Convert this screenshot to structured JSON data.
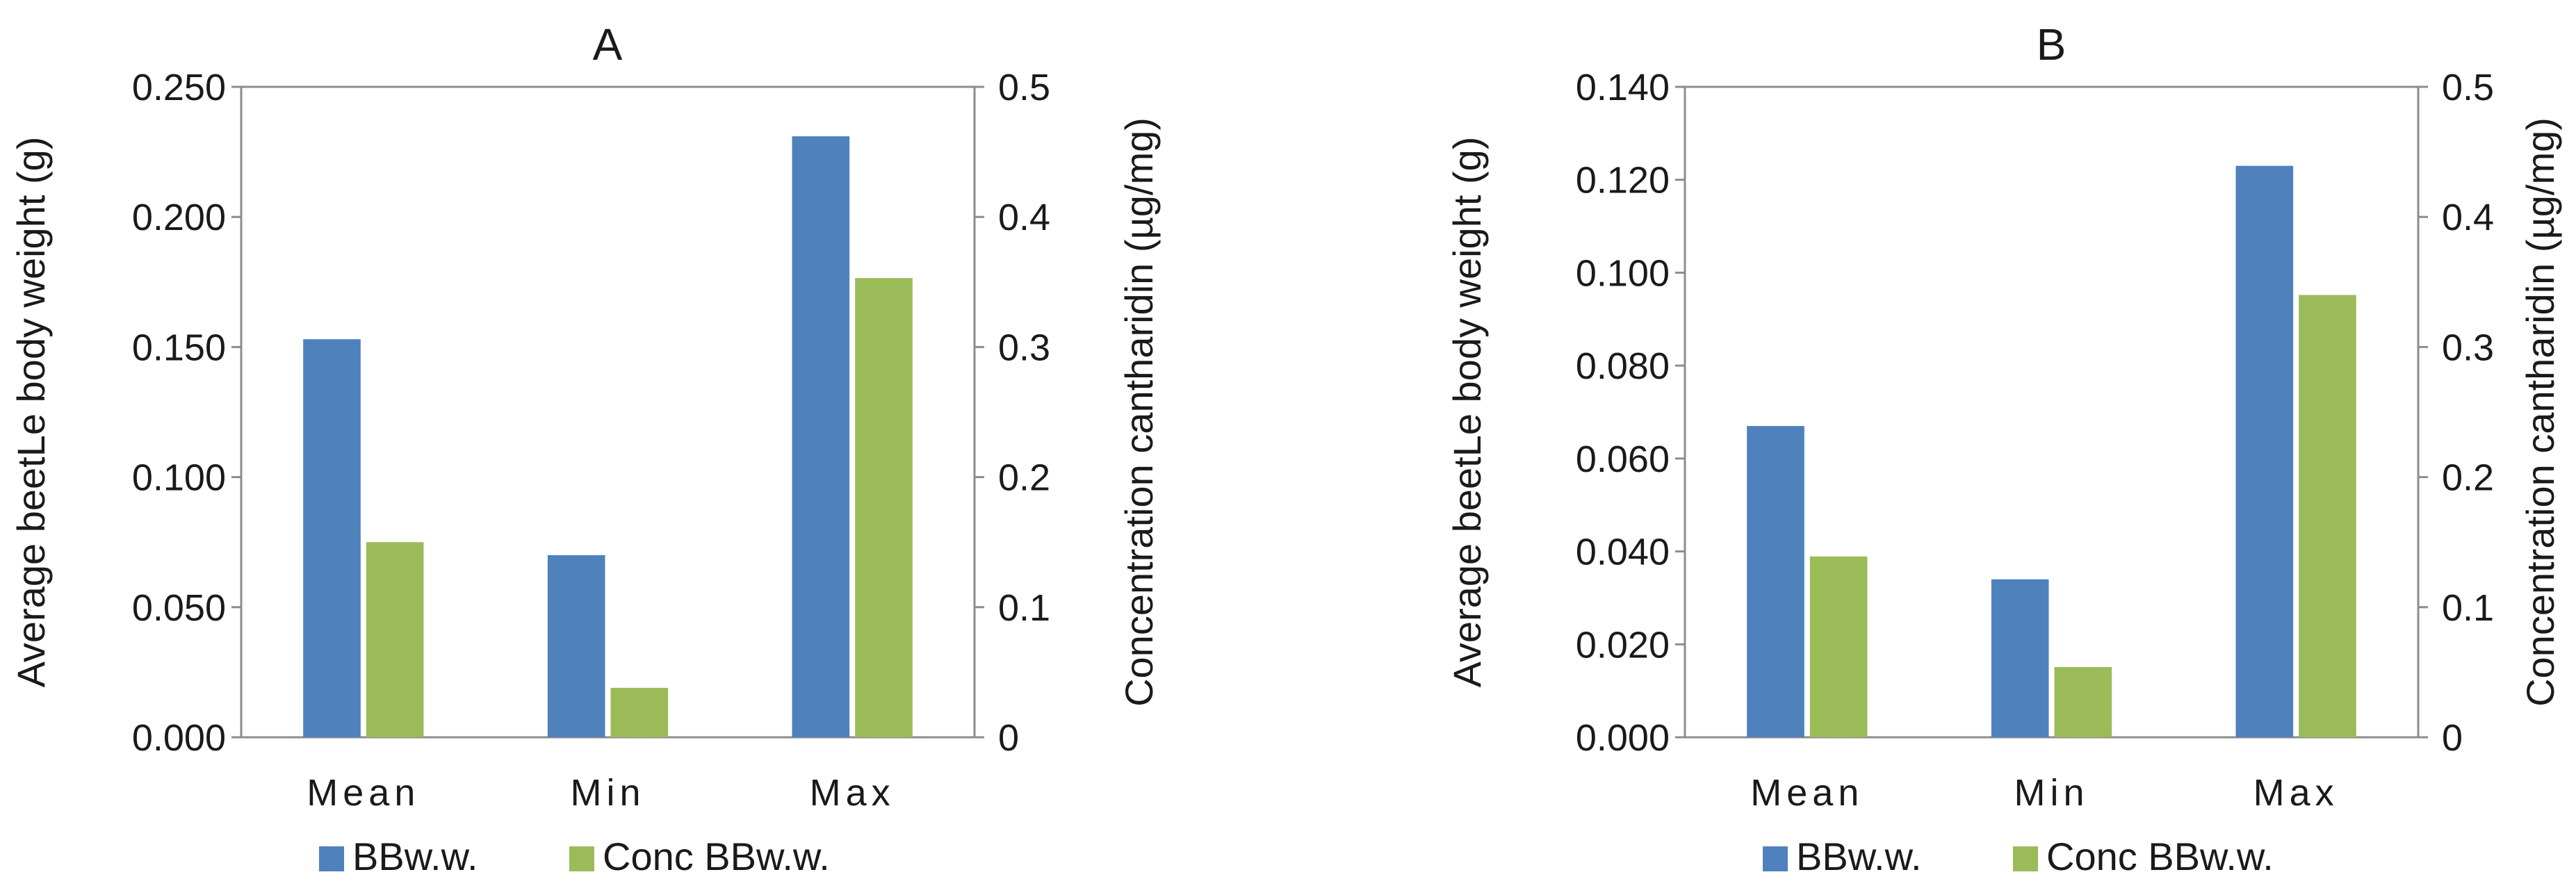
{
  "colors": {
    "series_1": "#4f81bd",
    "series_2": "#9bbb59"
  },
  "chart_data": [
    {
      "type": "bar",
      "title": "A",
      "categories": [
        "Mean",
        "Min",
        "Max"
      ],
      "ylabel": "Average beetLe body weight (g)",
      "ylabel_right": "Concentration cantharidin (µg/mg)",
      "ylim": [
        0,
        0.25
      ],
      "ylim_right": [
        0,
        0.5
      ],
      "yticks": [
        "0.000",
        "0.050",
        "0.100",
        "0.150",
        "0.200",
        "0.250"
      ],
      "yticks_right": [
        "0",
        "0.1",
        "0.2",
        "0.3",
        "0.4",
        "0.5"
      ],
      "grid": false,
      "legend": "bottom",
      "series": [
        {
          "name": "BBw.w.",
          "axis": "left",
          "values": [
            0.153,
            0.07,
            0.231
          ]
        },
        {
          "name": "Conc BBw.w.",
          "axis": "right",
          "values": [
            0.15,
            0.038,
            0.353
          ]
        }
      ]
    },
    {
      "type": "bar",
      "title": "B",
      "categories": [
        "Mean",
        "Min",
        "Max"
      ],
      "ylabel": "Average beetLe body weight (g)",
      "ylabel_right": "Concentration cantharidin (µg/mg)",
      "ylim": [
        0,
        0.14
      ],
      "ylim_right": [
        0,
        0.5
      ],
      "yticks": [
        "0.000",
        "0.020",
        "0.040",
        "0.060",
        "0.080",
        "0.100",
        "0.120",
        "0.140"
      ],
      "yticks_right": [
        "0",
        "0.1",
        "0.2",
        "0.3",
        "0.4",
        "0.5"
      ],
      "grid": false,
      "legend": "bottom",
      "series": [
        {
          "name": "BBw.w.",
          "axis": "left",
          "values": [
            0.067,
            0.034,
            0.123
          ]
        },
        {
          "name": "Conc BBw.w.",
          "axis": "right",
          "values": [
            0.139,
            0.054,
            0.34
          ]
        }
      ]
    }
  ]
}
